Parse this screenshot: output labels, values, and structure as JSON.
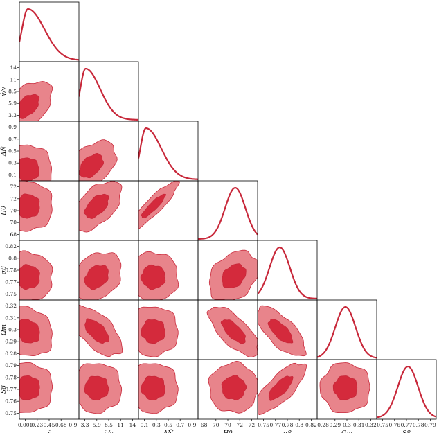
{
  "chart_data": {
    "type": "corner",
    "title": "",
    "colors": {
      "outer": "#e8848b",
      "inner": "#d42a3c",
      "line": "#c8283a"
    },
    "parameters": [
      {
        "label": "r",
        "xlabel": "r̂",
        "ylabel": "",
        "xticks": [
          "0.001",
          "0.23",
          "0.45",
          "0.68",
          "0.9"
        ],
        "yticks": [],
        "range": [
          0.001,
          0.9
        ]
      },
      {
        "label": "v",
        "xlabel": "v̂/v",
        "ylabel": "v̂/v",
        "xticks": [
          "3.3",
          "5.9",
          "8.5",
          "11",
          "14"
        ],
        "yticks": [
          "3.3",
          "5.9",
          "8.5",
          "11",
          "14"
        ],
        "range": [
          3.3,
          14
        ]
      },
      {
        "label": "N",
        "xlabel": "ΔN̂",
        "ylabel": "ΔN̂",
        "xticks": [
          "0.1",
          "0.3",
          "0.5",
          "0.7",
          "0.9"
        ],
        "yticks": [
          "0.1",
          "0.3",
          "0.5",
          "0.7",
          "0.9"
        ],
        "range": [
          0.1,
          0.9
        ]
      },
      {
        "label": "H",
        "xlabel": "H0",
        "ylabel": "H0",
        "xticks": [
          "68",
          "70",
          "70",
          "72",
          "72"
        ],
        "yticks": [
          "68",
          "70",
          "70",
          "72",
          "72"
        ],
        "range": [
          68,
          72
        ]
      },
      {
        "label": "s",
        "xlabel": "σ8",
        "ylabel": "σ8",
        "xticks": [
          "0.75",
          "0.77",
          "0.78",
          "0.8",
          "0.82"
        ],
        "yticks": [
          "0.75",
          "0.77",
          "0.78",
          "0.8",
          "0.82"
        ],
        "range": [
          0.75,
          0.82
        ]
      },
      {
        "label": "O",
        "xlabel": "Ωm",
        "ylabel": "Ωm",
        "xticks": [
          "0.28",
          "0.29",
          "0.3",
          "0.31",
          "0.32"
        ],
        "yticks": [
          "0.28",
          "0.29",
          "0.3",
          "0.31",
          "0.32"
        ],
        "range": [
          0.28,
          0.32
        ]
      },
      {
        "label": "S",
        "xlabel": "S8",
        "ylabel": "S8",
        "xticks": [
          "0.75",
          "0.76",
          "0.77",
          "0.78",
          "0.79"
        ],
        "yticks": [
          "0.75",
          "0.76",
          "0.77",
          "0.78",
          "0.79"
        ],
        "range": [
          0.75,
          0.79
        ]
      }
    ],
    "marginals": [
      {
        "param": "r",
        "mode": 0.13,
        "shape": "skewed-right"
      },
      {
        "param": "v",
        "mode": 4.5,
        "shape": "skewed-right"
      },
      {
        "param": "N",
        "mode": 0.2,
        "shape": "skewed-right"
      },
      {
        "param": "H",
        "mode": 70.5,
        "shape": "gaussian"
      },
      {
        "param": "s",
        "mode": 0.776,
        "shape": "gaussian"
      },
      {
        "param": "O",
        "mode": 0.299,
        "shape": "gaussian"
      },
      {
        "param": "S",
        "mode": 0.771,
        "shape": "gaussian"
      }
    ],
    "contours": [
      {
        "x": "r",
        "y": "v",
        "center": [
          0.12,
          6.0
        ],
        "correlation": 0.5
      },
      {
        "x": "r",
        "y": "N",
        "center": [
          0.12,
          0.25
        ],
        "correlation": 0.0
      },
      {
        "x": "v",
        "y": "N",
        "center": [
          5.5,
          0.3
        ],
        "correlation": 0.45
      },
      {
        "x": "r",
        "y": "H",
        "center": [
          0.13,
          70.3
        ],
        "correlation": 0.0
      },
      {
        "x": "v",
        "y": "H",
        "center": [
          6.5,
          70.3
        ],
        "correlation": 0.55
      },
      {
        "x": "N",
        "y": "H",
        "center": [
          0.3,
          70.3
        ],
        "correlation": 0.9
      },
      {
        "x": "r",
        "y": "s",
        "center": [
          0.13,
          0.777
        ],
        "correlation": 0.0
      },
      {
        "x": "v",
        "y": "s",
        "center": [
          6.5,
          0.777
        ],
        "correlation": 0.3
      },
      {
        "x": "N",
        "y": "s",
        "center": [
          0.3,
          0.777
        ],
        "correlation": 0.0
      },
      {
        "x": "H",
        "y": "s",
        "center": [
          70.4,
          0.778
        ],
        "correlation": 0.3
      },
      {
        "x": "r",
        "y": "O",
        "center": [
          0.13,
          0.299
        ],
        "correlation": -0.2
      },
      {
        "x": "v",
        "y": "O",
        "center": [
          6.5,
          0.299
        ],
        "correlation": -0.6
      },
      {
        "x": "N",
        "y": "O",
        "center": [
          0.3,
          0.299
        ],
        "correlation": 0.0
      },
      {
        "x": "H",
        "y": "O",
        "center": [
          70.4,
          0.299
        ],
        "correlation": -0.7
      },
      {
        "x": "s",
        "y": "O",
        "center": [
          0.777,
          0.299
        ],
        "correlation": -0.7
      },
      {
        "x": "r",
        "y": "S",
        "center": [
          0.13,
          0.771
        ],
        "correlation": 0.0
      },
      {
        "x": "v",
        "y": "S",
        "center": [
          6.5,
          0.771
        ],
        "correlation": 0.0
      },
      {
        "x": "N",
        "y": "S",
        "center": [
          0.3,
          0.771
        ],
        "correlation": 0.0
      },
      {
        "x": "H",
        "y": "S",
        "center": [
          70.4,
          0.771
        ],
        "correlation": 0.0
      },
      {
        "x": "s",
        "y": "S",
        "center": [
          0.777,
          0.771
        ],
        "correlation": 0.75
      },
      {
        "x": "O",
        "y": "S",
        "center": [
          0.299,
          0.771
        ],
        "correlation": 0.0
      }
    ]
  }
}
